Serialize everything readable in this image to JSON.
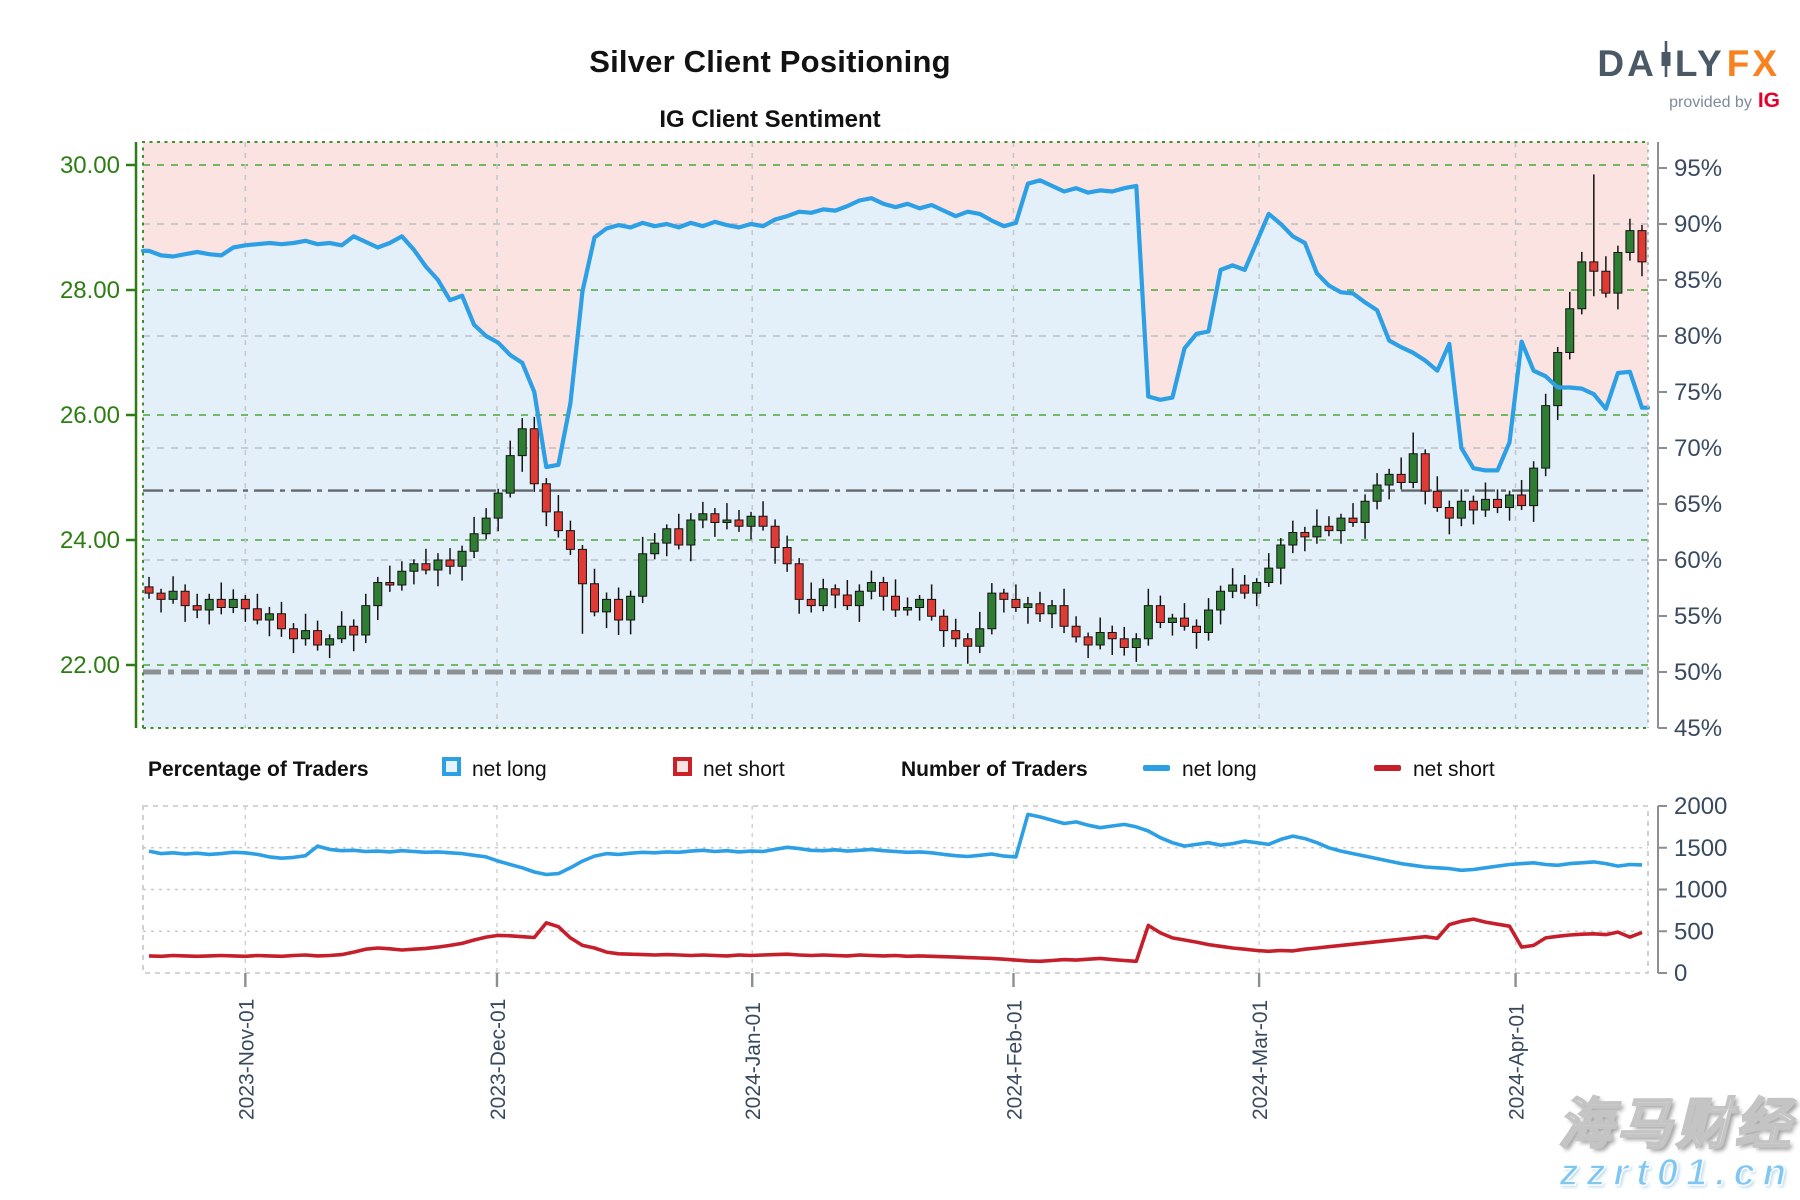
{
  "header": {
    "title": "Silver Client Positioning",
    "subtitle": "IG Client Sentiment"
  },
  "logo": {
    "daily_a": "DA",
    "daily_b": "LY",
    "fx": "FX",
    "provided": "provided by",
    "ig": "IG",
    "slate": "#4b5866",
    "orange": "#f8821f",
    "ig_red": "#e4002b"
  },
  "legend": {
    "pct_title": "Percentage of Traders",
    "num_title": "Number of Traders",
    "net_long": "net long",
    "net_short": "net short"
  },
  "watermark": {
    "line1": "海马财经",
    "line2": "zzrt01.cn"
  },
  "chart_data": [
    {
      "type": "candlestick+line",
      "title": "IG Client Sentiment",
      "x_labels": [
        "2023-Nov-01",
        "2023-Dec-01",
        "2024-Jan-01",
        "2024-Feb-01",
        "2024-Mar-01",
        "2024-Apr-01"
      ],
      "x_label_days": [
        8.5,
        29.4,
        50.6,
        72.3,
        92.7,
        114.0
      ],
      "price_axis": {
        "tick_labels": [
          "30.00",
          "28.00",
          "26.00",
          "24.00",
          "22.00"
        ],
        "tick_values": [
          30,
          28,
          26,
          24,
          22
        ],
        "color": "#2e7d14"
      },
      "pct_axis": {
        "tick_labels": [
          "95%",
          "90%",
          "85%",
          "80%",
          "75%",
          "70%",
          "65%",
          "60%",
          "55%",
          "50%",
          "45%"
        ],
        "tick_values": [
          95,
          90,
          85,
          80,
          75,
          70,
          65,
          60,
          55,
          50,
          45
        ],
        "color": "#394a5f"
      },
      "grid": {
        "h_price_lines": [
          30,
          28,
          26,
          24,
          22
        ],
        "h_pct_lines": [
          90,
          80,
          70,
          60
        ],
        "vertical_months": true
      },
      "ref_lines": [
        {
          "pct": 66.2,
          "style": "thin"
        },
        {
          "pct": 50,
          "style": "bold"
        }
      ],
      "first_open": 23.25,
      "closes": [
        23.15,
        23.05,
        23.18,
        22.95,
        22.88,
        23.05,
        22.92,
        23.05,
        22.9,
        22.72,
        22.82,
        22.58,
        22.42,
        22.55,
        22.32,
        22.42,
        22.62,
        22.48,
        22.95,
        23.32,
        23.28,
        23.5,
        23.62,
        23.52,
        23.68,
        23.58,
        23.82,
        24.1,
        24.35,
        24.75,
        25.35,
        25.78,
        24.9,
        24.45,
        24.15,
        23.85,
        23.3,
        22.85,
        23.05,
        22.72,
        23.1,
        23.78,
        23.95,
        24.18,
        23.92,
        24.32,
        24.42,
        24.28,
        24.32,
        24.22,
        24.38,
        24.22,
        23.88,
        23.62,
        23.05,
        22.95,
        23.22,
        23.12,
        22.95,
        23.18,
        23.32,
        23.1,
        22.88,
        22.92,
        23.05,
        22.78,
        22.55,
        22.42,
        22.3,
        22.58,
        23.15,
        23.05,
        22.92,
        22.98,
        22.82,
        22.95,
        22.62,
        22.45,
        22.32,
        22.52,
        22.42,
        22.28,
        22.42,
        22.95,
        22.68,
        22.75,
        22.62,
        22.52,
        22.88,
        23.18,
        23.28,
        23.15,
        23.32,
        23.55,
        23.92,
        24.12,
        24.05,
        24.22,
        24.15,
        24.35,
        24.28,
        24.62,
        24.88,
        25.05,
        24.92,
        25.38,
        24.78,
        24.52,
        24.35,
        24.62,
        24.48,
        24.65,
        24.52,
        24.72,
        24.55,
        25.15,
        26.15,
        27.0,
        27.7,
        28.45,
        28.3,
        27.95,
        28.6,
        28.95,
        28.45
      ],
      "wick_hi": [
        0.16,
        0.07,
        0.24,
        0.11,
        0.19,
        0.09,
        0.27
      ],
      "wick_lo": [
        0.09,
        0.21,
        0.07,
        0.26,
        0.13,
        0.23,
        0.11
      ],
      "high_overrides": {
        "31": 25.95,
        "105": 25.72,
        "120": 29.85
      },
      "low_overrides": {
        "36": 22.5,
        "39": 22.48,
        "68": 22.02,
        "82": 22.05,
        "120": 27.9
      },
      "sentiment_pct": [
        87.6,
        87.2,
        87.1,
        87.3,
        87.5,
        87.3,
        87.2,
        87.9,
        88.1,
        88.2,
        88.3,
        88.2,
        88.3,
        88.5,
        88.2,
        88.3,
        88.1,
        88.9,
        88.4,
        87.9,
        88.3,
        88.9,
        87.7,
        86.2,
        85.0,
        83.2,
        83.6,
        81.0,
        80.0,
        79.4,
        78.3,
        77.6,
        75.0,
        68.3,
        68.5,
        74.0,
        84.0,
        88.8,
        89.6,
        89.9,
        89.7,
        90.1,
        89.8,
        90.0,
        89.7,
        90.1,
        89.8,
        90.2,
        89.9,
        89.7,
        90.0,
        89.8,
        90.4,
        90.7,
        91.1,
        91.0,
        91.3,
        91.2,
        91.6,
        92.1,
        92.3,
        91.8,
        91.5,
        91.8,
        91.4,
        91.7,
        91.2,
        90.7,
        91.1,
        90.9,
        90.3,
        89.8,
        90.1,
        93.6,
        93.9,
        93.4,
        92.9,
        93.2,
        92.8,
        93.0,
        92.9,
        93.2,
        93.4,
        74.6,
        74.3,
        74.5,
        78.9,
        80.2,
        80.4,
        85.9,
        86.3,
        85.9,
        88.4,
        90.9,
        90.0,
        88.9,
        88.3,
        85.6,
        84.5,
        83.9,
        83.8,
        83.0,
        82.3,
        79.6,
        79.0,
        78.5,
        77.8,
        76.9,
        79.3,
        70.0,
        68.2,
        68.0,
        68.0,
        70.5,
        79.5,
        76.9,
        76.4,
        75.4,
        75.4,
        75.3,
        74.8,
        73.5,
        76.7,
        76.8,
        73.6
      ],
      "colors": {
        "up": "#2e7d32",
        "down": "#e03a34",
        "candle_outline": "#141414",
        "sentiment_line": "#2d9fe4",
        "area_above": "#fae3e1",
        "area_below": "#e3f0fa",
        "grid_green": "#4aa839",
        "grid_gray": "#bcbfc1",
        "border_green": "#3f8f2c",
        "border_gray": "#b9bcbe",
        "refline": "#73787c"
      }
    },
    {
      "type": "line",
      "ylim": [
        0,
        2000
      ],
      "y_tick_labels": [
        "0",
        "500",
        "1000",
        "1500",
        "2000"
      ],
      "y_tick_values": [
        0,
        500,
        1000,
        1500,
        2000
      ],
      "series": [
        {
          "name": "net long",
          "color": "#2d9fe4",
          "values": [
            1460,
            1430,
            1440,
            1425,
            1435,
            1420,
            1430,
            1445,
            1440,
            1420,
            1390,
            1375,
            1385,
            1405,
            1520,
            1480,
            1465,
            1470,
            1455,
            1460,
            1450,
            1465,
            1455,
            1445,
            1450,
            1440,
            1430,
            1410,
            1390,
            1340,
            1300,
            1260,
            1210,
            1180,
            1190,
            1260,
            1340,
            1400,
            1430,
            1420,
            1435,
            1445,
            1440,
            1450,
            1445,
            1460,
            1470,
            1455,
            1465,
            1450,
            1460,
            1455,
            1480,
            1505,
            1490,
            1470,
            1465,
            1475,
            1460,
            1470,
            1480,
            1465,
            1455,
            1445,
            1450,
            1440,
            1420,
            1405,
            1395,
            1410,
            1425,
            1400,
            1390,
            1900,
            1870,
            1830,
            1790,
            1810,
            1770,
            1740,
            1760,
            1780,
            1750,
            1700,
            1620,
            1560,
            1520,
            1540,
            1560,
            1530,
            1550,
            1580,
            1560,
            1540,
            1600,
            1640,
            1610,
            1560,
            1500,
            1460,
            1430,
            1400,
            1370,
            1340,
            1310,
            1290,
            1270,
            1260,
            1250,
            1230,
            1240,
            1260,
            1280,
            1300,
            1310,
            1320,
            1300,
            1290,
            1310,
            1320,
            1330,
            1310,
            1280,
            1300,
            1295
          ]
        },
        {
          "name": "net short",
          "color": "#c51f2c",
          "values": [
            205,
            200,
            210,
            205,
            200,
            205,
            210,
            205,
            200,
            210,
            205,
            200,
            210,
            215,
            205,
            210,
            220,
            250,
            285,
            300,
            290,
            275,
            285,
            295,
            310,
            330,
            355,
            395,
            430,
            450,
            445,
            435,
            425,
            600,
            555,
            420,
            330,
            300,
            250,
            230,
            225,
            220,
            215,
            220,
            215,
            210,
            215,
            210,
            205,
            215,
            210,
            215,
            220,
            225,
            215,
            210,
            215,
            210,
            205,
            215,
            210,
            205,
            210,
            200,
            205,
            200,
            195,
            190,
            185,
            180,
            175,
            165,
            155,
            145,
            140,
            150,
            160,
            155,
            165,
            175,
            160,
            150,
            140,
            570,
            480,
            420,
            395,
            370,
            340,
            320,
            300,
            285,
            270,
            260,
            270,
            265,
            285,
            300,
            315,
            330,
            345,
            360,
            375,
            390,
            405,
            420,
            435,
            415,
            580,
            620,
            645,
            610,
            585,
            560,
            310,
            330,
            420,
            440,
            455,
            465,
            470,
            460,
            490,
            430,
            485
          ]
        }
      ]
    }
  ]
}
